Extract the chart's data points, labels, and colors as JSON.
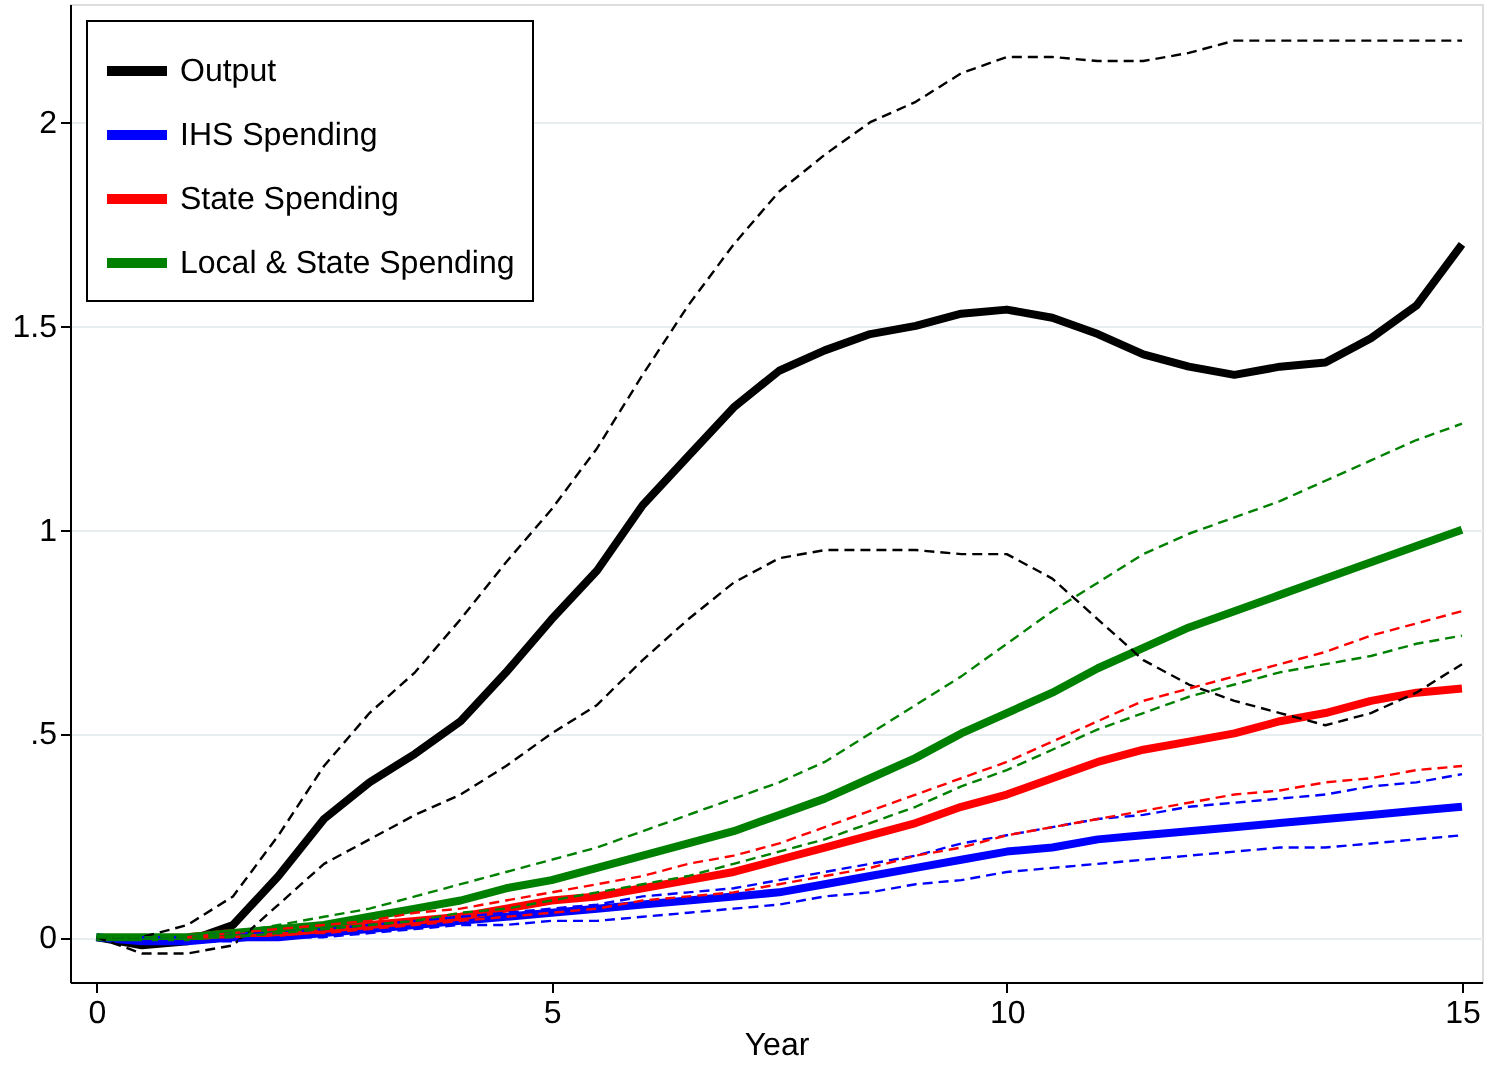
{
  "chart_data": {
    "type": "line",
    "xlabel": "Year",
    "x": [
      0,
      0.5,
      1,
      1.5,
      2,
      2.5,
      3,
      3.5,
      4,
      4.5,
      5,
      5.5,
      6,
      6.5,
      7,
      7.5,
      8,
      8.5,
      9,
      9.5,
      10,
      10.5,
      11,
      11.5,
      12,
      12.5,
      13,
      13.5,
      14,
      14.5,
      15
    ],
    "xlim": [
      -0.29,
      15.22
    ],
    "xticks": [
      0,
      5,
      10,
      15
    ],
    "ylim": [
      -0.11,
      2.29
    ],
    "yticks": [
      0,
      {
        "value": 0.5,
        "label": ".5"
      },
      1,
      1.5,
      2
    ],
    "grid": "y",
    "legend": "top left",
    "marker": "none",
    "line_style": "solid",
    "series": [
      {
        "name": "Output",
        "color": "#000000",
        "values": [
          0,
          -0.02,
          -0.01,
          0.03,
          0.15,
          0.29,
          0.38,
          0.45,
          0.53,
          0.65,
          0.78,
          0.9,
          1.06,
          1.18,
          1.3,
          1.39,
          1.44,
          1.48,
          1.5,
          1.53,
          1.54,
          1.52,
          1.48,
          1.43,
          1.4,
          1.38,
          1.4,
          1.41,
          1.47,
          1.55,
          1.7
        ]
      },
      {
        "color": "#000000",
        "line_style": "dashed",
        "values": [
          0,
          0,
          0.03,
          0.1,
          0.25,
          0.42,
          0.55,
          0.65,
          0.78,
          0.92,
          1.05,
          1.2,
          1.38,
          1.55,
          1.7,
          1.83,
          1.92,
          2.0,
          2.05,
          2.12,
          2.16,
          2.16,
          2.15,
          2.15,
          2.17,
          2.2,
          2.2,
          2.2,
          2.2,
          2.2,
          2.2
        ]
      },
      {
        "color": "#000000",
        "line_style": "dashed",
        "values": [
          0,
          -0.04,
          -0.04,
          -0.02,
          0.08,
          0.18,
          0.24,
          0.3,
          0.35,
          0.42,
          0.5,
          0.57,
          0.68,
          0.78,
          0.87,
          0.93,
          0.95,
          0.95,
          0.95,
          0.94,
          0.94,
          0.88,
          0.78,
          0.68,
          0.62,
          0.58,
          0.55,
          0.52,
          0.55,
          0.6,
          0.67
        ]
      },
      {
        "name": "IHS Spending",
        "color": "#0000ff",
        "values": [
          0,
          -0.01,
          -0.01,
          0,
          0,
          0.01,
          0.02,
          0.03,
          0.04,
          0.05,
          0.06,
          0.07,
          0.08,
          0.09,
          0.1,
          0.11,
          0.13,
          0.15,
          0.17,
          0.19,
          0.21,
          0.22,
          0.24,
          0.25,
          0.26,
          0.27,
          0.28,
          0.29,
          0.3,
          0.31,
          0.32
        ]
      },
      {
        "color": "#0000ff",
        "line_style": "dashed",
        "values": [
          null,
          0,
          0,
          0.01,
          0.01,
          0.02,
          0.03,
          0.04,
          0.05,
          0.06,
          0.07,
          0.08,
          0.1,
          0.11,
          0.12,
          0.14,
          0.16,
          0.18,
          0.2,
          0.23,
          0.25,
          0.27,
          0.29,
          0.3,
          0.32,
          0.33,
          0.34,
          0.35,
          0.37,
          0.38,
          0.4
        ]
      },
      {
        "color": "#0000ff",
        "line_style": "dashed",
        "values": [
          null,
          -0.01,
          -0.01,
          -0.01,
          0,
          0,
          0.01,
          0.02,
          0.03,
          0.03,
          0.04,
          0.04,
          0.05,
          0.06,
          0.07,
          0.08,
          0.1,
          0.11,
          0.13,
          0.14,
          0.16,
          0.17,
          0.18,
          0.19,
          0.2,
          0.21,
          0.22,
          0.22,
          0.23,
          0.24,
          0.25
        ]
      },
      {
        "name": "State Spending",
        "color": "#ff0000",
        "values": [
          null,
          null,
          0,
          0.01,
          0.01,
          0.02,
          0.03,
          0.04,
          0.05,
          0.07,
          0.09,
          0.1,
          0.12,
          0.14,
          0.16,
          0.19,
          0.22,
          0.25,
          0.28,
          0.32,
          0.35,
          0.39,
          0.43,
          0.46,
          0.48,
          0.5,
          0.53,
          0.55,
          0.58,
          0.6,
          0.61
        ]
      },
      {
        "color": "#ff0000",
        "line_style": "dashed",
        "values": [
          null,
          null,
          0,
          0.01,
          0.02,
          0.03,
          0.04,
          0.06,
          0.07,
          0.09,
          0.11,
          0.13,
          0.15,
          0.18,
          0.2,
          0.23,
          0.27,
          0.31,
          0.35,
          0.39,
          0.43,
          0.48,
          0.53,
          0.58,
          0.61,
          0.64,
          0.67,
          0.7,
          0.74,
          0.77,
          0.8
        ]
      },
      {
        "color": "#ff0000",
        "line_style": "dashed",
        "values": [
          null,
          null,
          0,
          0,
          0.01,
          0.01,
          0.02,
          0.03,
          0.04,
          0.05,
          0.06,
          0.07,
          0.09,
          0.1,
          0.11,
          0.13,
          0.15,
          0.17,
          0.2,
          0.22,
          0.25,
          0.27,
          0.29,
          0.31,
          0.33,
          0.35,
          0.36,
          0.38,
          0.39,
          0.41,
          0.42
        ]
      },
      {
        "name": "Local & State Spending",
        "color": "#008000",
        "values": [
          0,
          0,
          0,
          0.01,
          0.02,
          0.03,
          0.05,
          0.07,
          0.09,
          0.12,
          0.14,
          0.17,
          0.2,
          0.23,
          0.26,
          0.3,
          0.34,
          0.39,
          0.44,
          0.5,
          0.55,
          0.6,
          0.66,
          0.71,
          0.76,
          0.8,
          0.84,
          0.88,
          0.92,
          0.96,
          1.0
        ]
      },
      {
        "color": "#008000",
        "line_style": "dashed",
        "values": [
          0,
          0,
          0,
          0.01,
          0.03,
          0.05,
          0.07,
          0.1,
          0.13,
          0.16,
          0.19,
          0.22,
          0.26,
          0.3,
          0.34,
          0.38,
          0.43,
          0.5,
          0.57,
          0.64,
          0.72,
          0.8,
          0.87,
          0.94,
          0.99,
          1.03,
          1.07,
          1.12,
          1.17,
          1.22,
          1.26
        ]
      },
      {
        "color": "#008000",
        "line_style": "dashed",
        "values": [
          0,
          0,
          0,
          0,
          0.01,
          0.02,
          0.03,
          0.04,
          0.06,
          0.07,
          0.09,
          0.11,
          0.13,
          0.15,
          0.18,
          0.21,
          0.24,
          0.28,
          0.32,
          0.37,
          0.41,
          0.46,
          0.51,
          0.55,
          0.59,
          0.62,
          0.65,
          0.67,
          0.69,
          0.72,
          0.74
        ]
      }
    ]
  }
}
